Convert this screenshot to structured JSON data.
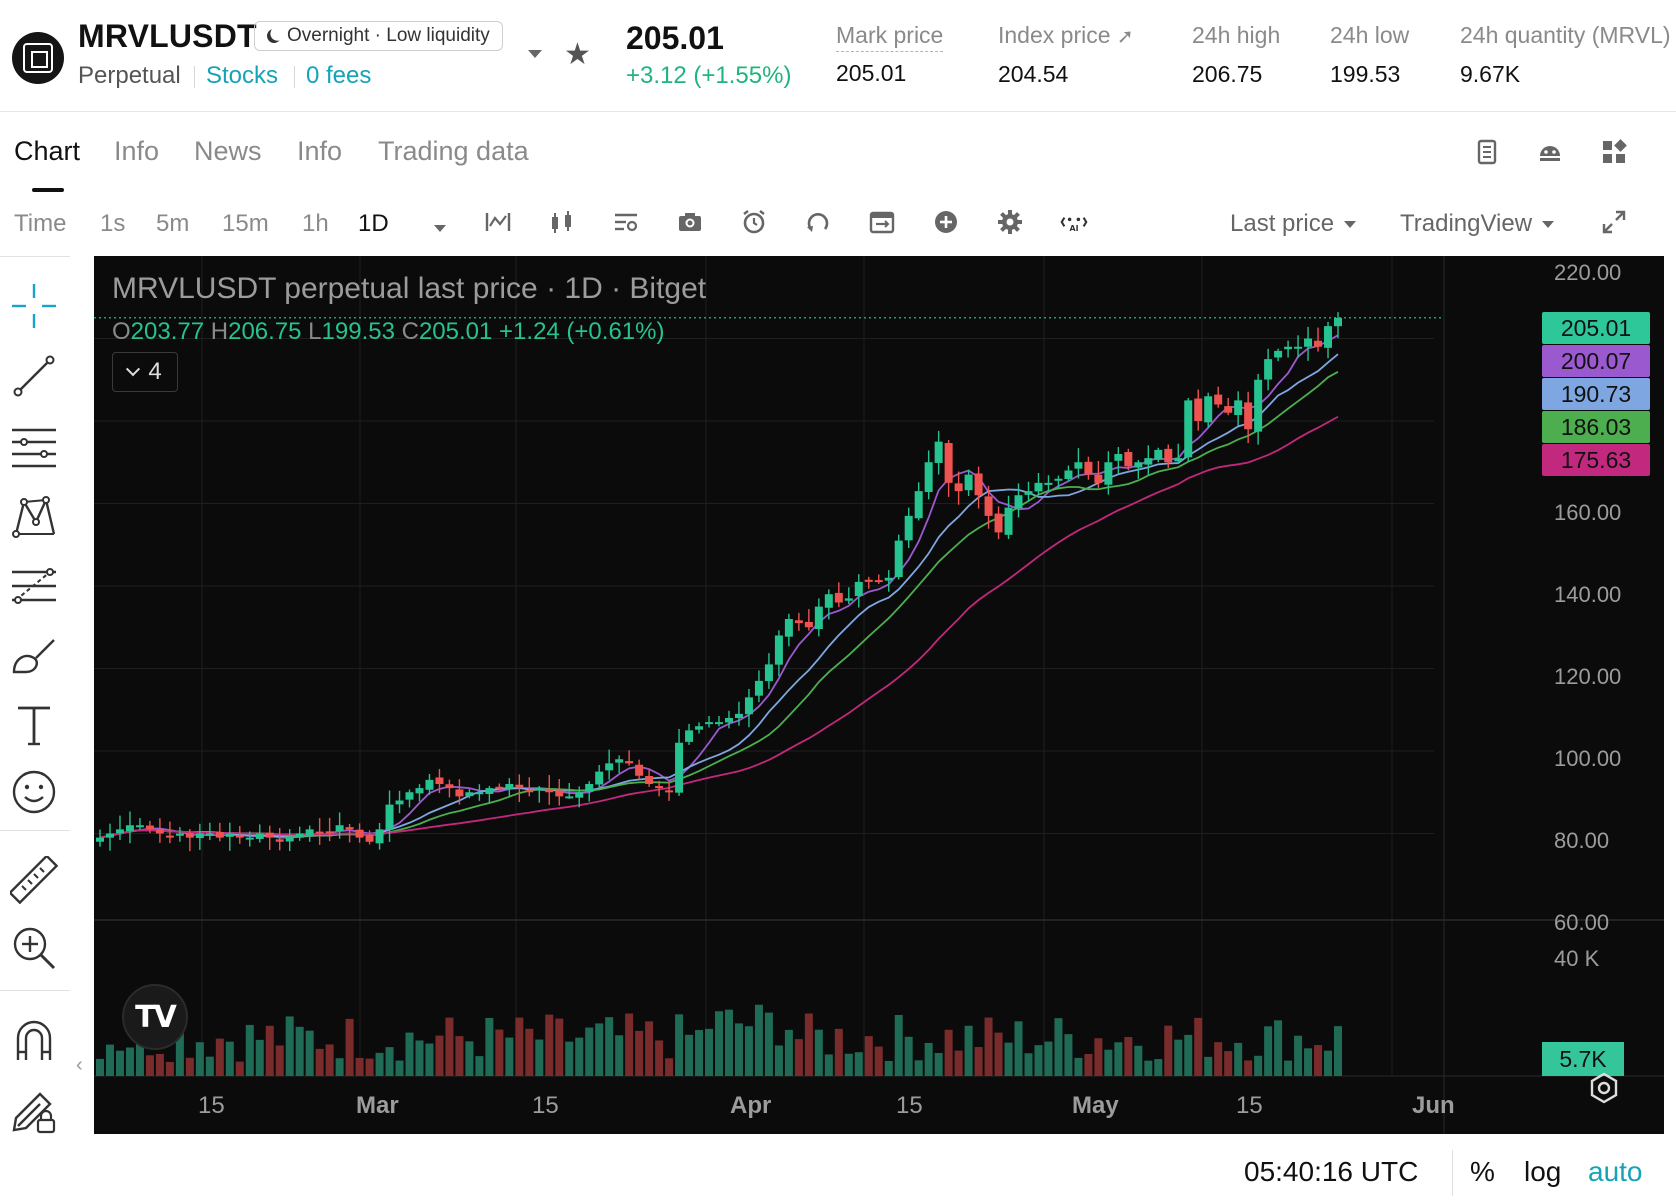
{
  "header": {
    "symbol": "MRVLUSDT",
    "badge": "Overnight · Low liquidity",
    "contract_type": "Perpetual",
    "category": "Stocks",
    "fees": "0 fees",
    "last_price": "205.01",
    "change": "+3.12  (+1.55%)",
    "stats": [
      {
        "label": "Mark price",
        "value": "205.01"
      },
      {
        "label": "Index price",
        "value": "204.54"
      },
      {
        "label": "24h high",
        "value": "206.75"
      },
      {
        "label": "24h low",
        "value": "199.53"
      },
      {
        "label": "24h quantity (MRVL)",
        "value": "9.67K"
      }
    ]
  },
  "tabs": [
    "Chart",
    "Info",
    "News",
    "Info",
    "Trading data"
  ],
  "toolbar": {
    "time_label": "Time",
    "intervals": [
      "1s",
      "5m",
      "15m",
      "1h",
      "1D"
    ],
    "active_interval": "1D",
    "price_source": "Last price",
    "chart_provider": "TradingView"
  },
  "chart": {
    "title": "MRVLUSDT perpetual last price · 1D · Bitget",
    "ohlc": {
      "o_label": "O",
      "o": "203.77",
      "h_label": "H",
      "h": "206.75",
      "l_label": "L",
      "l": "199.53",
      "c_label": "C",
      "c": "205.01",
      "change": "+1.24 (+0.61%)"
    },
    "indicator_count": "4",
    "price_axis": [
      "220.00",
      "160.00",
      "140.00",
      "120.00",
      "100.00",
      "80.00",
      "60.00"
    ],
    "volume_axis": "40 K",
    "time_axis": [
      "15",
      "Mar",
      "15",
      "Apr",
      "15",
      "May",
      "15",
      "Jun"
    ],
    "price_tags": [
      {
        "value": "205.01",
        "color": "#2ec79a"
      },
      {
        "value": "200.07",
        "color": "#9b59d0"
      },
      {
        "value": "190.73",
        "color": "#7ea6e0"
      },
      {
        "value": "186.03",
        "color": "#4cae4f"
      },
      {
        "value": "175.63",
        "color": "#c2287e"
      }
    ],
    "volume_tag": "5.7K",
    "colors": {
      "up": "#26a69a",
      "down": "#ef5350",
      "background": "#0b0b0b"
    }
  },
  "chart_data": {
    "type": "candlestick",
    "title": "MRVLUSDT perpetual last price · 1D · Bitget",
    "ylim": [
      60,
      220
    ],
    "x_ticks": [
      "15",
      "Mar",
      "15",
      "Apr",
      "15",
      "May",
      "15",
      "Jun"
    ],
    "last": {
      "open": 203.77,
      "high": 206.75,
      "low": 199.53,
      "close": 205.01
    },
    "close_series": [
      79,
      80,
      81,
      82,
      82,
      81,
      80,
      79,
      80,
      79,
      80,
      80,
      79,
      80,
      79,
      79,
      80,
      79,
      78,
      79,
      80,
      81,
      80,
      80,
      82,
      81,
      79,
      78,
      81,
      87,
      88,
      90,
      91,
      93,
      92,
      91,
      89,
      90,
      90,
      91,
      91,
      92,
      91,
      90,
      91,
      90,
      89,
      89,
      90,
      92,
      95,
      97,
      98,
      97,
      94,
      92,
      91,
      90,
      102,
      105,
      106,
      107,
      107,
      108,
      109,
      113,
      117,
      121,
      128,
      132,
      131,
      130,
      135,
      138,
      136,
      137,
      141,
      141,
      141,
      142,
      151,
      157,
      163,
      170,
      175,
      165,
      163,
      167,
      162,
      157,
      153,
      159,
      162,
      163,
      165,
      165,
      166,
      168,
      170,
      167,
      165,
      170,
      172,
      169,
      170,
      171,
      173,
      170,
      171,
      185,
      180,
      186,
      184,
      182,
      185,
      178,
      190,
      195,
      197,
      198,
      198,
      200,
      198,
      203,
      205
    ],
    "volume_max": 40000,
    "indicator_values": [
      205.01,
      200.07,
      190.73,
      186.03,
      175.63
    ]
  },
  "footer": {
    "clock": "05:40:16 UTC",
    "percent": "%",
    "log": "log",
    "auto": "auto"
  }
}
